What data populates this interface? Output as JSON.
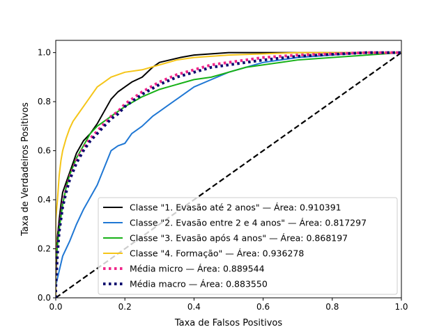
{
  "chart_data": {
    "type": "line",
    "title": "",
    "xlabel": "Taxa de Falsos Positivos",
    "ylabel": "Taxa de Verdadeiros Positivos",
    "xlim": [
      0.0,
      1.0
    ],
    "ylim": [
      0.0,
      1.05
    ],
    "xticks": [
      0.0,
      0.2,
      0.4,
      0.6,
      0.8,
      1.0
    ],
    "yticks": [
      0.0,
      0.2,
      0.4,
      0.6,
      0.8,
      1.0
    ],
    "xtick_labels": [
      "0.0",
      "0.2",
      "0.4",
      "0.6",
      "0.8",
      "1.0"
    ],
    "ytick_labels": [
      "0.0",
      "0.2",
      "0.4",
      "0.6",
      "0.8",
      "1.0"
    ],
    "grid": false,
    "legend_position": "lower-right",
    "chance_line": {
      "x": [
        0.0,
        1.0
      ],
      "y": [
        0.0,
        1.0
      ],
      "color": "#000000",
      "dash": "dashed"
    },
    "series": [
      {
        "name": "Classe \"1. Evasão até 2 anos\" — Área: 0.910391",
        "color": "#000000",
        "style": "solid",
        "x": [
          0,
          0.0,
          0.005,
          0.01,
          0.015,
          0.02,
          0.03,
          0.04,
          0.05,
          0.06,
          0.08,
          0.1,
          0.12,
          0.14,
          0.16,
          0.18,
          0.2,
          0.22,
          0.25,
          0.28,
          0.3,
          0.33,
          0.36,
          0.4,
          0.45,
          0.5,
          0.55,
          0.6,
          0.7,
          0.8,
          0.9,
          1.0
        ],
        "y": [
          0,
          0.08,
          0.25,
          0.32,
          0.38,
          0.43,
          0.47,
          0.51,
          0.55,
          0.59,
          0.64,
          0.67,
          0.71,
          0.76,
          0.81,
          0.84,
          0.86,
          0.88,
          0.9,
          0.94,
          0.96,
          0.97,
          0.98,
          0.99,
          0.995,
          1.0,
          1.0,
          1.0,
          1.0,
          1.0,
          1.0,
          1.0
        ]
      },
      {
        "name": "Classe \"2. Evasão entre 2 e 4 anos\" — Área: 0.817297",
        "color": "#1f77d4",
        "style": "solid",
        "x": [
          0,
          0.0,
          0.01,
          0.02,
          0.04,
          0.06,
          0.08,
          0.1,
          0.12,
          0.14,
          0.16,
          0.18,
          0.2,
          0.22,
          0.25,
          0.28,
          0.3,
          0.33,
          0.36,
          0.4,
          0.45,
          0.5,
          0.55,
          0.6,
          0.7,
          0.8,
          0.9,
          1.0
        ],
        "y": [
          0,
          0.05,
          0.11,
          0.17,
          0.23,
          0.3,
          0.36,
          0.41,
          0.46,
          0.53,
          0.6,
          0.62,
          0.63,
          0.67,
          0.7,
          0.74,
          0.76,
          0.79,
          0.82,
          0.86,
          0.89,
          0.92,
          0.94,
          0.96,
          0.98,
          0.99,
          1.0,
          1.0
        ]
      },
      {
        "name": "Classe \"3. Evasão após 4 anos\" — Área: 0.868197",
        "color": "#17b117",
        "style": "solid",
        "x": [
          0,
          0.0,
          0.01,
          0.02,
          0.03,
          0.04,
          0.06,
          0.08,
          0.1,
          0.12,
          0.14,
          0.16,
          0.18,
          0.2,
          0.25,
          0.3,
          0.35,
          0.4,
          0.45,
          0.5,
          0.55,
          0.6,
          0.65,
          0.7,
          0.8,
          0.9,
          1.0
        ],
        "y": [
          0,
          0.15,
          0.28,
          0.38,
          0.45,
          0.5,
          0.57,
          0.62,
          0.67,
          0.7,
          0.72,
          0.74,
          0.76,
          0.78,
          0.82,
          0.85,
          0.87,
          0.89,
          0.9,
          0.92,
          0.94,
          0.95,
          0.96,
          0.97,
          0.98,
          0.99,
          1.0
        ]
      },
      {
        "name": "Classe \"4. Formação\" — Área: 0.936278",
        "color": "#f5c518",
        "style": "solid",
        "x": [
          0,
          0.0,
          0.005,
          0.01,
          0.015,
          0.02,
          0.03,
          0.04,
          0.05,
          0.06,
          0.08,
          0.1,
          0.12,
          0.14,
          0.16,
          0.18,
          0.2,
          0.25,
          0.3,
          0.35,
          0.4,
          0.5,
          0.6,
          0.7,
          0.8,
          0.9,
          1.0
        ],
        "y": [
          0,
          0.32,
          0.4,
          0.5,
          0.56,
          0.6,
          0.65,
          0.69,
          0.72,
          0.74,
          0.78,
          0.82,
          0.86,
          0.88,
          0.9,
          0.91,
          0.92,
          0.93,
          0.95,
          0.97,
          0.98,
          0.99,
          0.995,
          1.0,
          1.0,
          1.0,
          1.0
        ]
      },
      {
        "name": "Média micro — Área: 0.889544",
        "color": "#f0268a",
        "style": "dotted",
        "x": [
          0,
          0.0,
          0.005,
          0.01,
          0.02,
          0.03,
          0.04,
          0.06,
          0.08,
          0.1,
          0.12,
          0.14,
          0.16,
          0.18,
          0.2,
          0.25,
          0.3,
          0.35,
          0.4,
          0.45,
          0.5,
          0.55,
          0.6,
          0.7,
          0.8,
          0.9,
          1.0
        ],
        "y": [
          0,
          0.05,
          0.2,
          0.28,
          0.38,
          0.44,
          0.49,
          0.56,
          0.61,
          0.65,
          0.68,
          0.71,
          0.74,
          0.76,
          0.79,
          0.84,
          0.88,
          0.91,
          0.93,
          0.95,
          0.96,
          0.97,
          0.98,
          0.99,
          0.995,
          1.0,
          1.0
        ]
      },
      {
        "name": "Média macro — Área: 0.883550",
        "color": "#0a0a6e",
        "style": "dotted",
        "x": [
          0,
          0.0,
          0.005,
          0.01,
          0.02,
          0.03,
          0.04,
          0.06,
          0.08,
          0.1,
          0.12,
          0.14,
          0.16,
          0.18,
          0.2,
          0.25,
          0.3,
          0.35,
          0.4,
          0.45,
          0.5,
          0.55,
          0.6,
          0.7,
          0.8,
          0.9,
          1.0
        ],
        "y": [
          0,
          0.04,
          0.18,
          0.27,
          0.37,
          0.43,
          0.48,
          0.55,
          0.6,
          0.64,
          0.67,
          0.7,
          0.73,
          0.75,
          0.78,
          0.83,
          0.87,
          0.9,
          0.92,
          0.94,
          0.95,
          0.96,
          0.97,
          0.985,
          0.993,
          1.0,
          1.0
        ]
      }
    ]
  }
}
